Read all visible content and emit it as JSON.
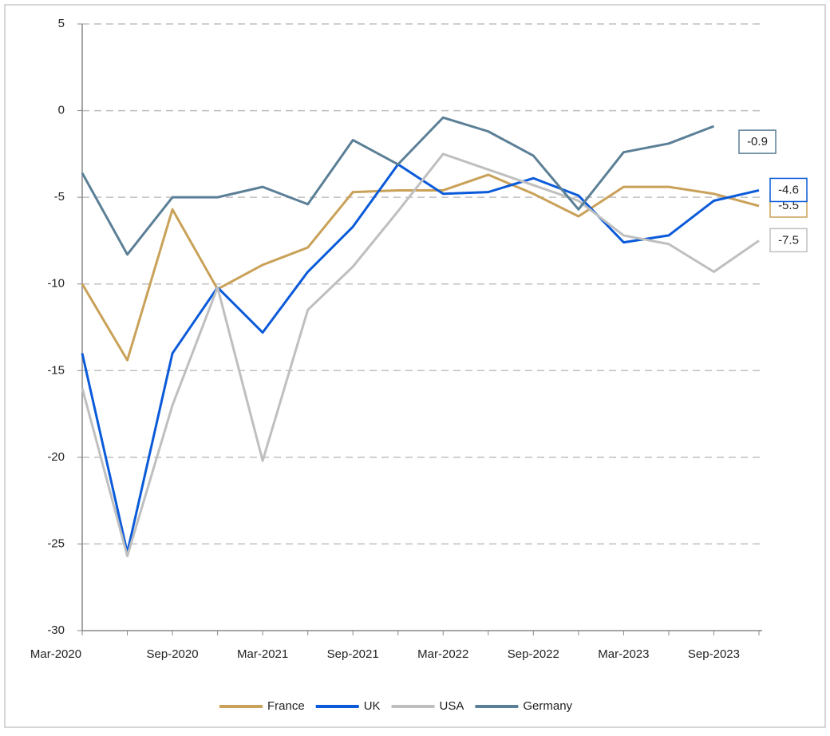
{
  "chart_data": {
    "type": "line",
    "categories": [
      "Mar-2020",
      null,
      "Sep-2020",
      null,
      "Mar-2021",
      null,
      "Sep-2021",
      null,
      "Mar-2022",
      null,
      "Sep-2022",
      null,
      "Mar-2023",
      null,
      "Sep-2023",
      null
    ],
    "series": [
      {
        "name": "France",
        "color": "#c9a158",
        "values": [
          -10,
          -14.4,
          -5.7,
          -10.3,
          -8.9,
          -7.9,
          -4.7,
          -4.6,
          -4.6,
          -3.7,
          -4.8,
          -6.1,
          -4.4,
          -4.4,
          -4.8,
          -5.5
        ]
      },
      {
        "name": "UK",
        "color": "#0a5ad9",
        "values": [
          -14,
          -25.5,
          -14,
          -10.2,
          -12.8,
          -9.3,
          -6.7,
          -3.1,
          -4.8,
          -4.7,
          -3.9,
          -4.9,
          -7.6,
          -7.2,
          -5.2,
          -4.6
        ]
      },
      {
        "name": "USA",
        "color": "#bfbfbf",
        "values": [
          -16,
          -25.7,
          -17,
          -10.2,
          -20.2,
          -11.5,
          -9,
          -5.8,
          -2.5,
          -3.4,
          -4.3,
          -5.2,
          -7.2,
          -7.7,
          -9.3,
          -7.5
        ]
      },
      {
        "name": "Germany",
        "color": "#5b7f96",
        "values": [
          -3.6,
          -8.3,
          -5,
          -5,
          -4.4,
          -5.4,
          -1.7,
          -3.1,
          -0.4,
          -1.2,
          -2.6,
          -5.7,
          -2.4,
          -1.9,
          -0.9,
          null
        ]
      }
    ],
    "ylim": [
      -30,
      5
    ],
    "yticks": [
      5,
      0,
      -5,
      -10,
      -15,
      -20,
      -25,
      -30
    ],
    "grid": true,
    "legend": "bottom"
  }
}
